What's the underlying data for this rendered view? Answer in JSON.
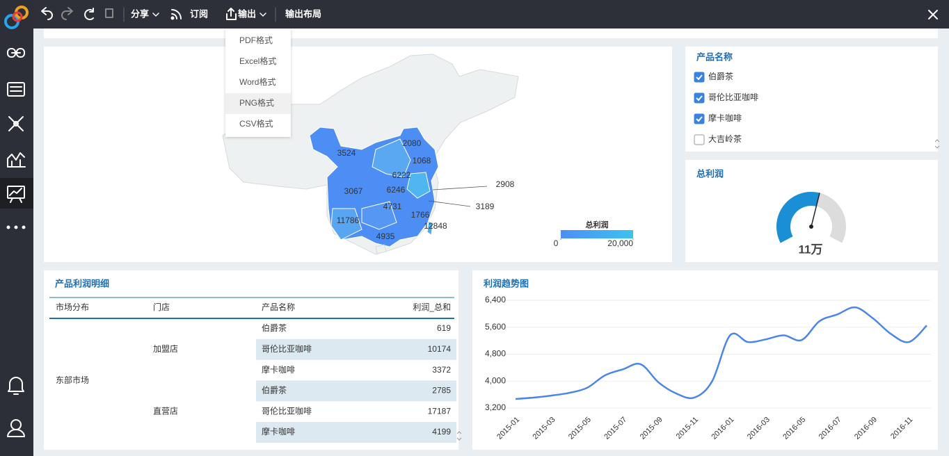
{
  "toolbar": {
    "items": [
      "分享",
      "订阅",
      "输出",
      "输出布局"
    ]
  },
  "export_menu": {
    "items": [
      "PDF格式",
      "Excel格式",
      "Word格式",
      "PNG格式",
      "CSV格式"
    ],
    "hovered": 3
  },
  "map": {
    "values": [
      3524,
      2080,
      1068,
      6222,
      6246,
      3067,
      4731,
      1766,
      11786,
      4935,
      12848,
      2908,
      3189
    ],
    "legend": {
      "title": "总利润",
      "ticks": [
        0,
        {
          "value": 20000,
          "label": "20,000"
        }
      ],
      "colors": [
        "#4d8ef5",
        "#3bc3f0"
      ]
    }
  },
  "filter": {
    "title": "产品名称",
    "options": [
      {
        "label": "伯爵茶",
        "checked": true
      },
      {
        "label": "哥伦比亚咖啡",
        "checked": true
      },
      {
        "label": "摩卡咖啡",
        "checked": true
      },
      {
        "label": "大吉岭茶",
        "checked": false
      }
    ]
  },
  "gauge": {
    "title": "总利润",
    "value_label": "11万"
  },
  "table": {
    "title": "产品利润明细",
    "columns": [
      "市场分布",
      "门店",
      "产品名称",
      "利润_总和"
    ],
    "market": "东部市场",
    "stores": [
      {
        "name": "加盟店",
        "rows": [
          [
            "伯爵茶",
            619
          ],
          [
            "哥伦比亚咖啡",
            10174
          ],
          [
            "摩卡咖啡",
            3372
          ]
        ]
      },
      {
        "name": "直营店",
        "rows": [
          [
            "伯爵茶",
            2785
          ],
          [
            "哥伦比亚咖啡",
            17187
          ],
          [
            "摩卡咖啡",
            4199
          ]
        ]
      }
    ]
  },
  "chart_data": {
    "type": "line",
    "title": "利润趋势图",
    "categories": [
      "2015-01",
      null,
      "2015-03",
      null,
      "2015-05",
      null,
      "2015-07",
      null,
      "2015-09",
      null,
      "2015-11",
      null,
      "2016-01",
      null,
      "2016-03",
      null,
      "2016-05",
      null,
      "2016-07",
      null,
      "2016-09",
      null,
      "2016-11",
      null
    ],
    "values": [
      3470,
      3510,
      3570,
      3650,
      3800,
      4170,
      4350,
      4500,
      3960,
      3630,
      3510,
      4000,
      5360,
      5160,
      5240,
      5360,
      5220,
      5780,
      5980,
      6190,
      5860,
      5400,
      5160,
      5650
    ],
    "color": "#4a86e8",
    "ylim": [
      3200,
      6400
    ],
    "yticks": [
      {
        "value": 3200,
        "label": "3,200"
      },
      {
        "value": 4000,
        "label": "4,000"
      },
      {
        "value": 4800,
        "label": "4,800"
      },
      {
        "value": 5600,
        "label": "5,600"
      },
      {
        "value": 6400,
        "label": "6,400"
      }
    ],
    "grid": true
  }
}
